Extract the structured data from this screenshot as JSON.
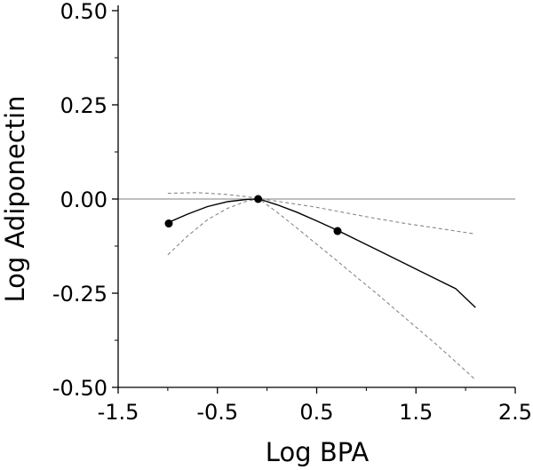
{
  "chart_data": {
    "type": "line",
    "xlabel": "Log BPA",
    "ylabel": "Log Adiponectin",
    "xlim": [
      -1.5,
      2.5
    ],
    "ylim": [
      -0.5,
      0.5
    ],
    "x_ticks": [
      -1.5,
      -0.5,
      0.5,
      1.5,
      2.5
    ],
    "x_tick_labels": [
      "-1.5",
      "-0.5",
      "0.5",
      "1.5",
      "2.5"
    ],
    "y_ticks": [
      0.5,
      0.25,
      0.0,
      -0.25,
      -0.5
    ],
    "y_tick_labels": [
      "0.50",
      "0.25",
      "0.00",
      "-0.25",
      "-0.50"
    ],
    "reference_line_y": 0.0,
    "grid": false,
    "legend": "none",
    "colors": {
      "estimate": "#000000",
      "ci": "#888888",
      "reference": "#999999"
    },
    "series": [
      {
        "role": "estimate",
        "style": "solid",
        "x": [
          -1.0,
          -0.8,
          -0.6,
          -0.4,
          -0.2,
          -0.08,
          0.1,
          0.3,
          0.5,
          0.7,
          0.9,
          1.1,
          1.3,
          1.5,
          1.7,
          1.9,
          2.1
        ],
        "y": [
          -0.063,
          -0.04,
          -0.02,
          -0.007,
          -0.001,
          0.0,
          -0.015,
          -0.035,
          -0.058,
          -0.082,
          -0.108,
          -0.134,
          -0.16,
          -0.186,
          -0.212,
          -0.238,
          -0.288
        ]
      },
      {
        "role": "ci-upper",
        "style": "dashed",
        "x": [
          -1.0,
          -0.7,
          -0.4,
          -0.2,
          0.0,
          0.2,
          0.5,
          0.8,
          1.1,
          1.4,
          1.7,
          2.1
        ],
        "y": [
          0.015,
          0.017,
          0.012,
          0.006,
          -0.002,
          -0.01,
          -0.022,
          -0.037,
          -0.052,
          -0.065,
          -0.077,
          -0.093
        ]
      },
      {
        "role": "ci-lower",
        "style": "dashed",
        "x": [
          -1.0,
          -0.8,
          -0.6,
          -0.4,
          -0.2,
          -0.08,
          0.1,
          0.3,
          0.5,
          0.7,
          0.9,
          1.1,
          1.3,
          1.5,
          1.7,
          1.9,
          2.1
        ],
        "y": [
          -0.148,
          -0.098,
          -0.055,
          -0.025,
          -0.005,
          0.0,
          -0.035,
          -0.077,
          -0.12,
          -0.163,
          -0.207,
          -0.25,
          -0.295,
          -0.34,
          -0.385,
          -0.432,
          -0.48
        ]
      }
    ],
    "points": [
      {
        "x": -0.99,
        "y": -0.065
      },
      {
        "x": -0.09,
        "y": 0.0
      },
      {
        "x": 0.71,
        "y": -0.085
      }
    ]
  }
}
